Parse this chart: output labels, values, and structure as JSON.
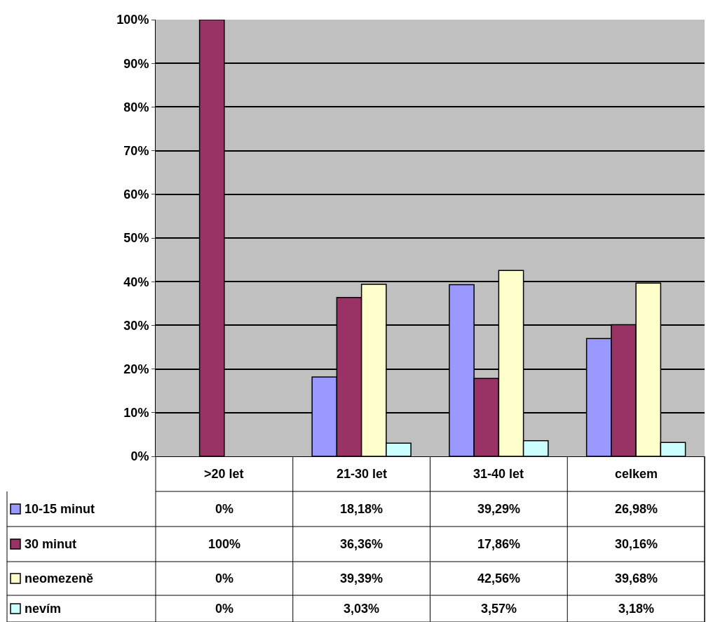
{
  "chart_data": {
    "type": "bar",
    "categories": [
      ">20 let",
      "21-30 let",
      "31-40 let",
      "celkem"
    ],
    "series": [
      {
        "name": "10-15 minut",
        "color": "#9999ff",
        "values": [
          0,
          18.18,
          39.29,
          26.98
        ],
        "value_labels": [
          "0%",
          "18,18%",
          "39,29%",
          "26,98%"
        ]
      },
      {
        "name": "30 minut",
        "color": "#993366",
        "values": [
          100,
          36.36,
          17.86,
          30.16
        ],
        "value_labels": [
          "100%",
          "36,36%",
          "17,86%",
          "30,16%"
        ]
      },
      {
        "name": "neomezeně",
        "color": "#ffffcc",
        "values": [
          0,
          39.39,
          42.56,
          39.68
        ],
        "value_labels": [
          "0%",
          "39,39%",
          "42,56%",
          "39,68%"
        ]
      },
      {
        "name": "nevím",
        "color": "#ccffff",
        "values": [
          0,
          3.03,
          3.57,
          3.18
        ],
        "value_labels": [
          "0%",
          "3,03%",
          "3,57%",
          "3,18%"
        ]
      }
    ],
    "ylim": [
      0,
      100
    ],
    "yticks": [
      {
        "value": 0,
        "label": "0%"
      },
      {
        "value": 10,
        "label": "10%"
      },
      {
        "value": 20,
        "label": "20%"
      },
      {
        "value": 30,
        "label": "30%"
      },
      {
        "value": 40,
        "label": "40%"
      },
      {
        "value": 50,
        "label": "50%"
      },
      {
        "value": 60,
        "label": "60%"
      },
      {
        "value": 70,
        "label": "70%"
      },
      {
        "value": 80,
        "label": "80%"
      },
      {
        "value": 90,
        "label": "90%"
      },
      {
        "value": 100,
        "label": "100%"
      }
    ],
    "grid": "y",
    "legend": "bottom left"
  }
}
